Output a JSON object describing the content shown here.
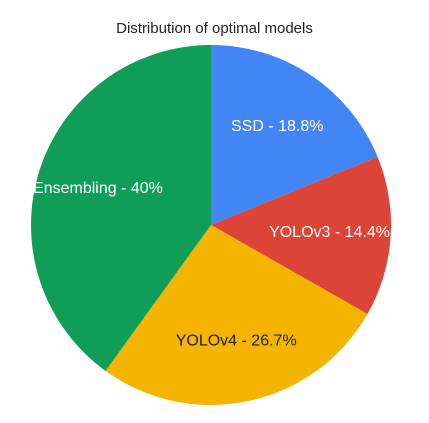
{
  "chart_data": {
    "type": "pie",
    "title": "Distribution of optimal models",
    "slices": [
      {
        "label": "SSD - 18.8%",
        "name": "SSD",
        "value": 18.8,
        "color": "#4285F4",
        "label_color": "#ffffff"
      },
      {
        "label": "YOLOv3 - 14.4%",
        "name": "YOLOv3",
        "value": 14.4,
        "color": "#DB4437",
        "label_color": "#ffffff"
      },
      {
        "label": "YOLOv4 - 26.7%",
        "name": "YOLOv4",
        "value": 26.7,
        "color": "#F4B400",
        "label_color": "#222222"
      },
      {
        "label": "Ensembling - 40%",
        "name": "Ensembling",
        "value": 40,
        "color": "#0F9D58",
        "label_color": "#ffffff"
      }
    ]
  }
}
